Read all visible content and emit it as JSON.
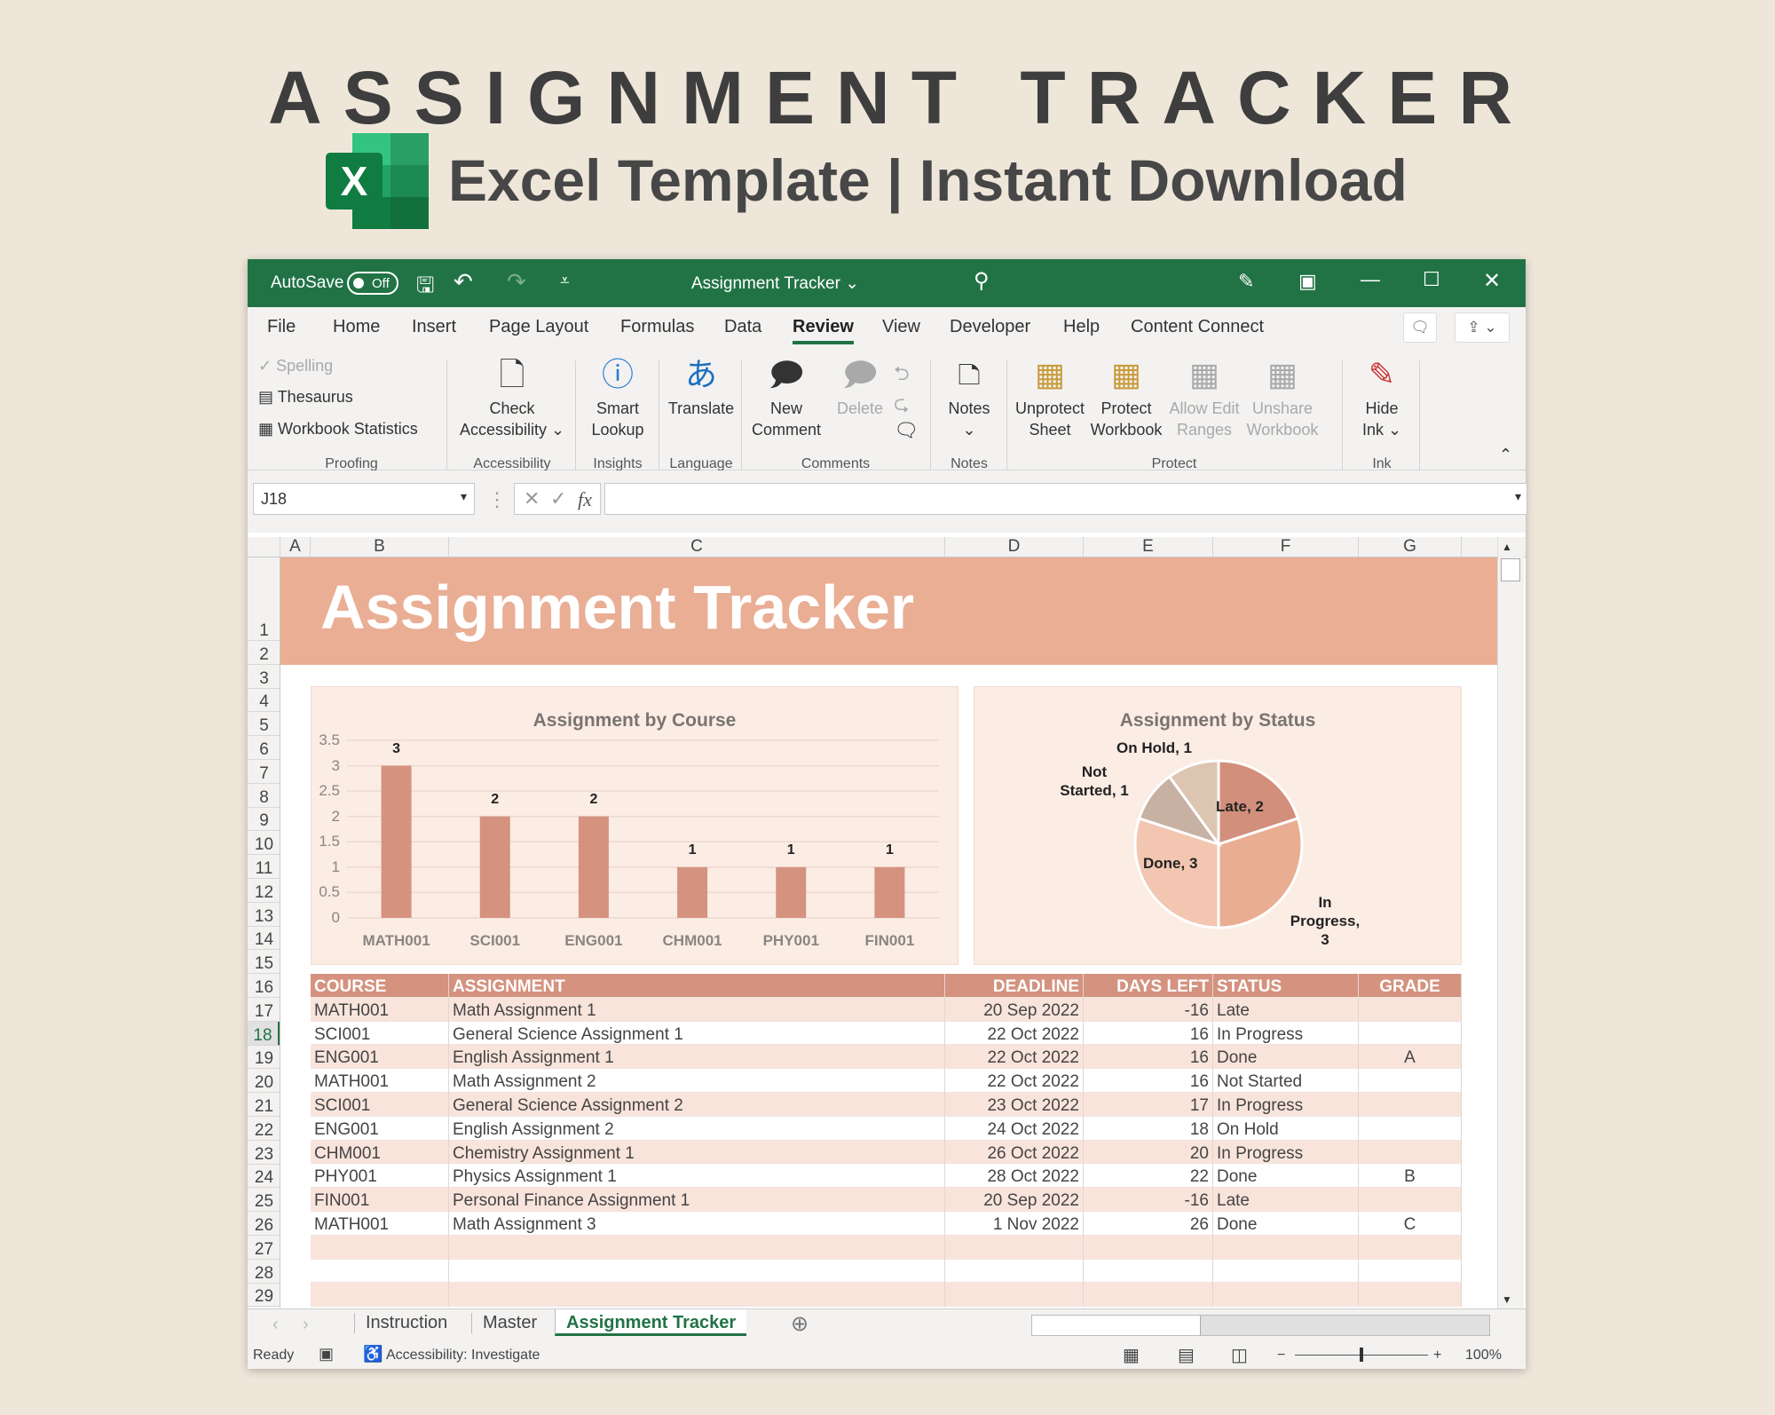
{
  "hero": {
    "title": "ASSIGNMENT TRACKER",
    "subtitle": "Excel Template | Instant Download",
    "logo_letter": "X"
  },
  "titlebar": {
    "autosave": "AutoSave",
    "autosave_state": "Off",
    "doc_title": "Assignment Tracker ⌄"
  },
  "tabs": [
    "File",
    "Home",
    "Insert",
    "Page Layout",
    "Formulas",
    "Data",
    "Review",
    "View",
    "Developer",
    "Help",
    "Content Connect"
  ],
  "active_tab": "Review",
  "ribbon": {
    "proofing": {
      "spelling": "Spelling",
      "thesaurus": "Thesaurus",
      "stats": "Workbook Statistics",
      "label": "Proofing"
    },
    "accessibility": {
      "btn1": "Check",
      "btn2": "Accessibility ⌄",
      "label": "Accessibility"
    },
    "insights": {
      "btn1": "Smart",
      "btn2": "Lookup",
      "label": "Insights"
    },
    "language": {
      "btn": "Translate",
      "label": "Language"
    },
    "comments": {
      "new1": "New",
      "new2": "Comment",
      "del": "Delete",
      "label": "Comments"
    },
    "notes": {
      "btn": "Notes",
      "caret": "⌄",
      "label": "Notes"
    },
    "protect": {
      "u1": "Unprotect",
      "u2": "Sheet",
      "p1": "Protect",
      "p2": "Workbook",
      "a1": "Allow Edit",
      "a2": "Ranges",
      "s1": "Unshare",
      "s2": "Workbook",
      "label": "Protect"
    },
    "ink": {
      "h1": "Hide",
      "h2": "Ink ⌄",
      "label": "Ink"
    }
  },
  "formula_bar": {
    "name_box": "J18",
    "fx": "fx",
    "value": ""
  },
  "columns": [
    "A",
    "B",
    "C",
    "D",
    "E",
    "F",
    "G"
  ],
  "selected_row": 18,
  "sheet": {
    "title": "Assignment Tracker"
  },
  "chart_data": [
    {
      "type": "bar",
      "title": "Assignment by Course",
      "categories": [
        "MATH001",
        "SCI001",
        "ENG001",
        "CHM001",
        "PHY001",
        "FIN001"
      ],
      "values": [
        3,
        2,
        2,
        1,
        1,
        1
      ],
      "ylim": [
        0,
        3.5
      ],
      "yticks": [
        "0",
        "0.5",
        "1",
        "1.5",
        "2",
        "2.5",
        "3",
        "3.5"
      ],
      "grid": true,
      "color": "#d4927f"
    },
    {
      "type": "pie",
      "title": "Assignment by Status",
      "labels": [
        "Late, 2",
        "In Progress, 3",
        "Done, 3",
        "Not Started, 1",
        "On Hold, 1"
      ],
      "categories": [
        "Late",
        "In Progress",
        "Done",
        "Not Started",
        "On Hold"
      ],
      "values": [
        2,
        3,
        3,
        1,
        1
      ],
      "colors": [
        "#d28f7c",
        "#e9ad91",
        "#f2c6b1",
        "#c7b1a2",
        "#dcc6b2"
      ]
    }
  ],
  "table": {
    "headers": [
      "COURSE",
      "ASSIGNMENT",
      "DEADLINE",
      "DAYS LEFT",
      "STATUS",
      "GRADE"
    ],
    "rows": [
      [
        "MATH001",
        "Math Assignment 1",
        "20 Sep 2022",
        "-16",
        "Late",
        ""
      ],
      [
        "SCI001",
        "General Science Assignment 1",
        "22 Oct 2022",
        "16",
        "In Progress",
        ""
      ],
      [
        "ENG001",
        "English Assignment 1",
        "22 Oct 2022",
        "16",
        "Done",
        "A"
      ],
      [
        "MATH001",
        "Math Assignment 2",
        "22 Oct 2022",
        "16",
        "Not Started",
        ""
      ],
      [
        "SCI001",
        "General Science Assignment 2",
        "23 Oct 2022",
        "17",
        "In Progress",
        ""
      ],
      [
        "ENG001",
        "English Assignment 2",
        "24 Oct 2022",
        "18",
        "On Hold",
        ""
      ],
      [
        "CHM001",
        "Chemistry Assignment 1",
        "26 Oct 2022",
        "20",
        "In Progress",
        ""
      ],
      [
        "PHY001",
        "Physics Assignment 1",
        "28 Oct 2022",
        "22",
        "Done",
        "B"
      ],
      [
        "FIN001",
        "Personal Finance Assignment 1",
        "20 Sep 2022",
        "-16",
        "Late",
        ""
      ],
      [
        "MATH001",
        "Math Assignment 3",
        "1 Nov 2022",
        "26",
        "Done",
        "C"
      ]
    ]
  },
  "sheet_tabs": [
    "Instruction",
    "Master",
    "Assignment Tracker"
  ],
  "active_sheet": "Assignment Tracker",
  "status": {
    "ready": "Ready",
    "accessibility": "Accessibility: Investigate",
    "zoom": "100%",
    "minus": "−",
    "plus": "+"
  },
  "colors": {
    "excel_green": "#217346",
    "banner": "#e9ae94",
    "table_header": "#d4927f",
    "row_alt": "#f9e4dc",
    "chart_bg": "#fbece4"
  }
}
